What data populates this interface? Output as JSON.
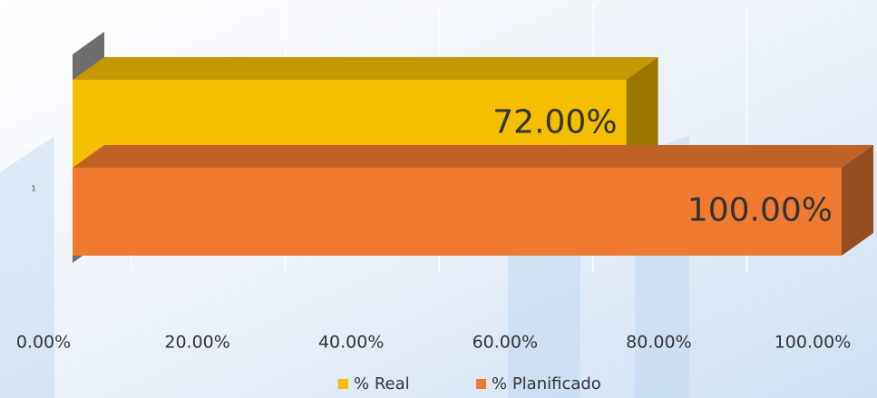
{
  "chart_data": {
    "type": "bar",
    "orientation": "horizontal",
    "categories": [
      "1"
    ],
    "series": [
      {
        "name": "% Real",
        "color": "#f5be00",
        "values": [
          72
        ],
        "value_labels": [
          "72.00%"
        ]
      },
      {
        "name": "% Planificado",
        "color": "#f07a30",
        "values": [
          100
        ],
        "value_labels": [
          "100.00%"
        ]
      }
    ],
    "xlim": [
      0,
      100
    ],
    "xticks": [
      {
        "value": 0,
        "label": "0.00%"
      },
      {
        "value": 20,
        "label": "20.00%"
      },
      {
        "value": 40,
        "label": "40.00%"
      },
      {
        "value": 60,
        "label": "60.00%"
      },
      {
        "value": 80,
        "label": "80.00%"
      },
      {
        "value": 100,
        "label": "100.00%"
      }
    ],
    "grid": true,
    "legend": "bottom"
  }
}
